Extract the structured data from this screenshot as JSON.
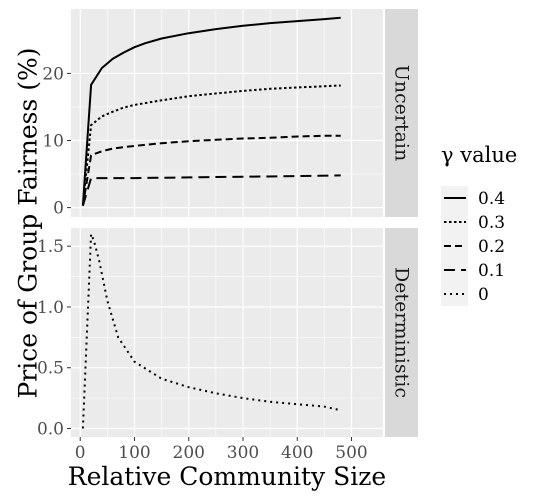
{
  "chart_data": {
    "type": "line",
    "xlabel": "Relative Community Size",
    "ylabel": "Price of Group Fairness (%)",
    "x_ticks": [
      0,
      100,
      200,
      300,
      400,
      500
    ],
    "xlim": [
      -17,
      558
    ],
    "colors": {
      "panel_bg": "#ebebeb",
      "grid": "#ffffff",
      "strip_bg": "#d9d9d9",
      "line": "#000000"
    },
    "legend": {
      "title": "γ value",
      "position": "right",
      "entries": [
        {
          "label": "0.4",
          "dash": "solid"
        },
        {
          "label": "0.3",
          "dash": "dotted-dense"
        },
        {
          "label": "0.2",
          "dash": "dashed"
        },
        {
          "label": "0.1",
          "dash": "longdash"
        },
        {
          "label": "0",
          "dash": "dotted"
        }
      ]
    },
    "panels": [
      {
        "strip": "Uncertain",
        "ylim": [
          -1.4,
          29.6
        ],
        "y_ticks": [
          0,
          10,
          20
        ],
        "series": [
          {
            "name": "0.4",
            "dash": "solid",
            "x": [
              5,
              20,
              40,
              60,
              80,
              100,
              120,
              150,
              200,
              250,
              300,
              350,
              400,
              450,
              480
            ],
            "y": [
              0.3,
              18.3,
              20.8,
              22.2,
              23.1,
              23.9,
              24.5,
              25.2,
              26.0,
              26.6,
              27.1,
              27.5,
              27.8,
              28.1,
              28.3
            ]
          },
          {
            "name": "0.3",
            "dash": "dotted-dense",
            "x": [
              5,
              20,
              40,
              60,
              80,
              100,
              150,
              200,
              250,
              300,
              350,
              400,
              450,
              480
            ],
            "y": [
              0.3,
              12.3,
              13.6,
              14.3,
              14.9,
              15.3,
              16.0,
              16.6,
              17.0,
              17.4,
              17.7,
              17.9,
              18.1,
              18.2
            ]
          },
          {
            "name": "0.2",
            "dash": "dashed",
            "x": [
              5,
              20,
              40,
              60,
              80,
              100,
              150,
              200,
              250,
              300,
              350,
              400,
              450,
              480
            ],
            "y": [
              0.3,
              7.8,
              8.4,
              8.8,
              9.0,
              9.2,
              9.6,
              9.9,
              10.1,
              10.3,
              10.4,
              10.6,
              10.7,
              10.7
            ]
          },
          {
            "name": "0.1",
            "dash": "longdash",
            "x": [
              5,
              20,
              50,
              100,
              200,
              300,
              400,
              480
            ],
            "y": [
              0.3,
              4.4,
              4.4,
              4.4,
              4.5,
              4.6,
              4.7,
              4.8
            ]
          }
        ]
      },
      {
        "strip": "Deterministic",
        "ylim": [
          -0.07,
          1.65
        ],
        "y_ticks": [
          0.0,
          0.5,
          1.0,
          1.5
        ],
        "y_tick_labels": [
          "0.0",
          "0.5",
          "1.0",
          "1.5"
        ],
        "series": [
          {
            "name": "0",
            "dash": "dotted",
            "x": [
              5,
              20,
              25,
              35,
              50,
              70,
              100,
              150,
              200,
              250,
              300,
              350,
              400,
              450,
              480
            ],
            "y": [
              0.0,
              1.6,
              1.55,
              1.38,
              1.05,
              0.75,
              0.55,
              0.41,
              0.34,
              0.29,
              0.25,
              0.22,
              0.2,
              0.18,
              0.15
            ]
          }
        ]
      }
    ]
  }
}
